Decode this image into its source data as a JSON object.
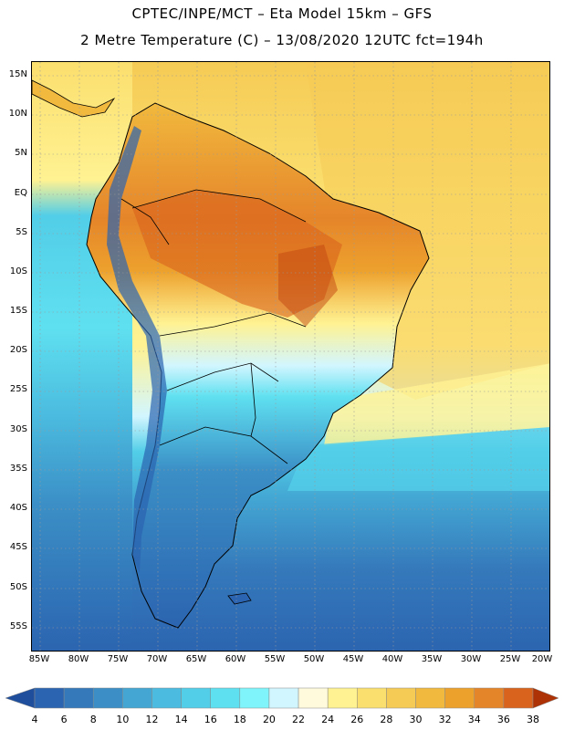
{
  "header": {
    "title_line1": "CPTEC/INPE/MCT –  Eta Model 15km – GFS",
    "title_line2": "2 Metre Temperature (C) – 13/08/2020 12UTC fct=194h"
  },
  "map": {
    "lat_labels": [
      "15N",
      "10N",
      "5N",
      "EQ",
      "5S",
      "10S",
      "15S",
      "20S",
      "25S",
      "30S",
      "35S",
      "40S",
      "45S",
      "50S",
      "55S"
    ],
    "lon_labels": [
      "85W",
      "80W",
      "75W",
      "70W",
      "65W",
      "60W",
      "55W",
      "50W",
      "45W",
      "40W",
      "35W",
      "30W",
      "25W",
      "20W"
    ]
  },
  "colorbar": {
    "labels": [
      "4",
      "6",
      "8",
      "10",
      "12",
      "14",
      "16",
      "18",
      "20",
      "22",
      "24",
      "26",
      "28",
      "30",
      "32",
      "34",
      "36",
      "38"
    ],
    "colors": [
      "#2b64b0",
      "#3579bb",
      "#3b8fc6",
      "#43a6d3",
      "#4bbbdf",
      "#52cee8",
      "#5fe0f0",
      "#7ff5fb",
      "#d2f6ff",
      "#fffadc",
      "#fff292",
      "#fbdf6e",
      "#f5cb55",
      "#f1b93d",
      "#eda12d",
      "#e5852a",
      "#d9631d",
      "#c2450f"
    ],
    "low_color": "#1f4f9c",
    "high_color": "#ad3205"
  }
}
